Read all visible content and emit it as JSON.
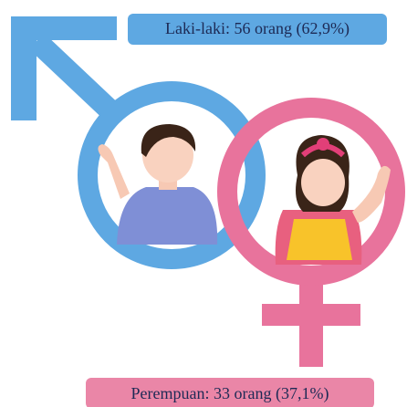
{
  "labels": {
    "male": "Laki-laki: 56 orang (62,9%)",
    "female": "Perempuan: 33 orang (37,1%)"
  }
}
